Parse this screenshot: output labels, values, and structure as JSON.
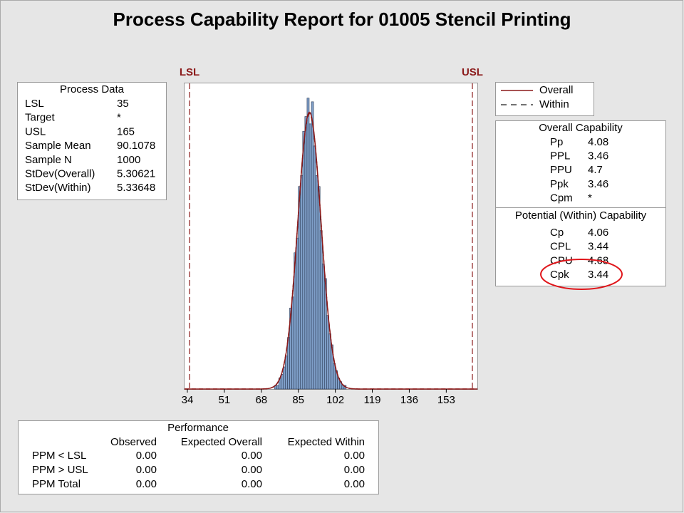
{
  "title": "Process Capability Report for 01005 Stencil Printing",
  "process_data": {
    "title": "Process Data",
    "rows": [
      {
        "label": "LSL",
        "value": 35
      },
      {
        "label": "Target",
        "value": "*"
      },
      {
        "label": "USL",
        "value": 165
      },
      {
        "label": "Sample Mean",
        "value": 90.1078
      },
      {
        "label": "Sample N",
        "value": 1000
      },
      {
        "label": "StDev(Overall)",
        "value": 5.30621
      },
      {
        "label": "StDev(Within)",
        "value": 5.33648
      }
    ]
  },
  "chart_data": {
    "type": "histogram",
    "bins": [
      74,
      75,
      76,
      77,
      78,
      79,
      80,
      81,
      82,
      83,
      84,
      85,
      86,
      87,
      88,
      89,
      90,
      91,
      92,
      93,
      94,
      95,
      96,
      97,
      98,
      99,
      100,
      101,
      102,
      103,
      104,
      105,
      106,
      107,
      108
    ],
    "values": [
      1,
      1,
      3,
      4,
      6,
      9,
      14,
      22,
      25,
      37,
      41,
      55,
      58,
      70,
      74,
      79,
      72,
      78,
      66,
      58,
      55,
      43,
      34,
      30,
      20,
      15,
      12,
      7,
      5,
      3,
      2,
      1,
      1,
      0
    ],
    "color": "#7f9fc8",
    "xlim": [
      32.7,
      167.3
    ],
    "ylim": [
      0,
      83
    ],
    "xticks": [
      34,
      51,
      68,
      85,
      102,
      119,
      136,
      153
    ],
    "reference_lines": [
      {
        "label": "LSL",
        "value": 35
      },
      {
        "label": "USL",
        "value": 165
      }
    ],
    "reference_color": "#8b1a1a",
    "series": [
      {
        "name": "Overall",
        "color": "#8b1a1a",
        "dash": "solid"
      },
      {
        "name": "Within",
        "color": "#8b1a1a",
        "dash": "dashed"
      }
    ]
  },
  "overall_capability": {
    "title": "Overall Capability",
    "rows": [
      {
        "label": "Pp",
        "value": 4.08
      },
      {
        "label": "PPL",
        "value": 3.46
      },
      {
        "label": "PPU",
        "value": 4.7
      },
      {
        "label": "Ppk",
        "value": 3.46
      },
      {
        "label": "Cpm",
        "value": "*"
      }
    ]
  },
  "within_capability": {
    "title": "Potential (Within) Capability",
    "rows": [
      {
        "label": "Cp",
        "value": 4.06
      },
      {
        "label": "CPL",
        "value": 3.44
      },
      {
        "label": "CPU",
        "value": 4.68
      },
      {
        "label": "Cpk",
        "value": 3.44
      }
    ]
  },
  "performance": {
    "title": "Performance",
    "columns": [
      "Observed",
      "Expected Overall",
      "Expected Within"
    ],
    "rows": [
      {
        "label": "PPM < LSL",
        "values": [
          "0.00",
          "0.00",
          "0.00"
        ]
      },
      {
        "label": "PPM > USL",
        "values": [
          "0.00",
          "0.00",
          "0.00"
        ]
      },
      {
        "label": "PPM Total",
        "values": [
          "0.00",
          "0.00",
          "0.00"
        ]
      }
    ]
  }
}
